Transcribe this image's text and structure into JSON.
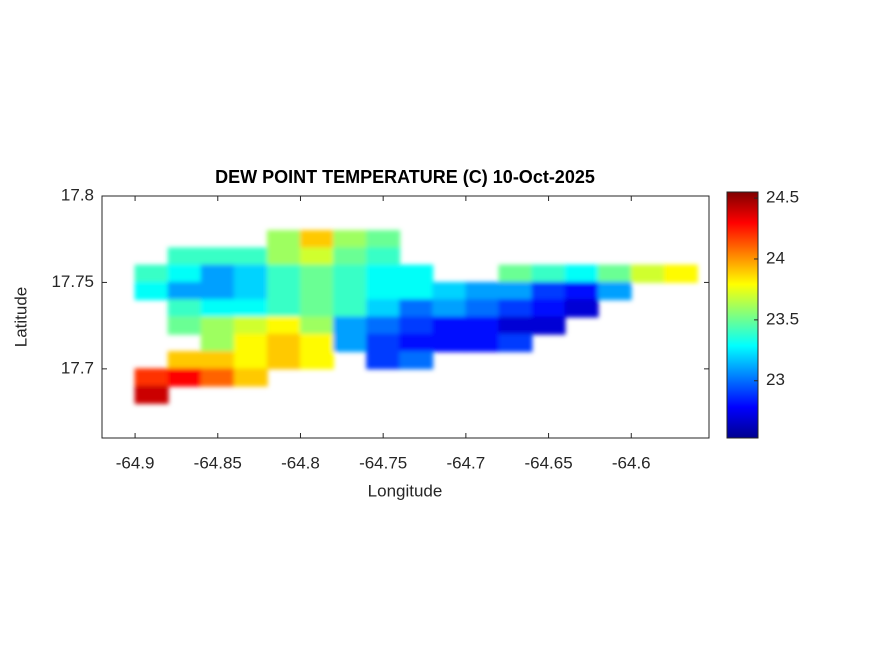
{
  "chart_data": {
    "type": "contour",
    "title": "DEW POINT TEMPERATURE (C) 10-Oct-2025",
    "x_label": "Longitude",
    "y_label": "Latitude",
    "colormap": "jet",
    "x": [
      -64.89,
      -64.87,
      -64.85,
      -64.83,
      -64.81,
      -64.79,
      -64.77,
      -64.75,
      -64.73,
      -64.71,
      -64.69,
      -64.67,
      -64.65,
      -64.63,
      -64.61,
      -64.59,
      -64.57
    ],
    "y": [
      17.775,
      17.765,
      17.755,
      17.745,
      17.735,
      17.725,
      17.715,
      17.705,
      17.695,
      17.685
    ],
    "z": [
      [
        null,
        null,
        null,
        null,
        23.6,
        23.9,
        23.6,
        23.5,
        null,
        null,
        null,
        null,
        null,
        null,
        null,
        null,
        null
      ],
      [
        null,
        23.4,
        23.4,
        23.4,
        23.6,
        23.7,
        23.5,
        23.4,
        null,
        null,
        null,
        null,
        null,
        null,
        null,
        null,
        null
      ],
      [
        23.4,
        23.3,
        23.1,
        23.2,
        23.4,
        23.5,
        23.4,
        23.3,
        23.3,
        null,
        null,
        23.5,
        23.4,
        23.3,
        23.5,
        23.7,
        23.8
      ],
      [
        23.3,
        23.1,
        23.1,
        23.2,
        23.4,
        23.5,
        23.4,
        23.3,
        23.3,
        23.2,
        23.1,
        23.1,
        22.9,
        22.8,
        23.1,
        null,
        null
      ],
      [
        null,
        23.4,
        23.3,
        23.3,
        23.4,
        23.5,
        23.4,
        23.2,
        23.0,
        23.1,
        23.0,
        22.9,
        22.8,
        22.7,
        null,
        null,
        null
      ],
      [
        null,
        23.5,
        23.6,
        23.7,
        23.8,
        23.6,
        23.1,
        23.0,
        22.9,
        22.8,
        22.8,
        22.7,
        22.7,
        null,
        null,
        null,
        null
      ],
      [
        null,
        null,
        23.6,
        23.8,
        23.9,
        23.8,
        23.1,
        22.9,
        22.8,
        22.8,
        22.8,
        22.9,
        null,
        null,
        null,
        null,
        null
      ],
      [
        null,
        23.9,
        23.9,
        23.8,
        23.9,
        23.8,
        null,
        22.9,
        23.0,
        null,
        null,
        null,
        null,
        null,
        null,
        null,
        null
      ],
      [
        24.2,
        24.3,
        24.1,
        23.9,
        null,
        null,
        null,
        null,
        null,
        null,
        null,
        null,
        null,
        null,
        null,
        null,
        null
      ],
      [
        24.4,
        null,
        null,
        null,
        null,
        null,
        null,
        null,
        null,
        null,
        null,
        null,
        null,
        null,
        null,
        null,
        null
      ]
    ],
    "xlim": [
      -64.92,
      -64.553
    ],
    "ylim": [
      17.66,
      17.8
    ],
    "xticks": [
      -64.9,
      -64.85,
      -64.8,
      -64.75,
      -64.7,
      -64.65,
      -64.6
    ],
    "yticks": [
      17.7,
      17.75,
      17.8
    ],
    "clim": [
      22.53,
      24.55
    ],
    "cticks": [
      23,
      23.5,
      24,
      24.5
    ]
  }
}
